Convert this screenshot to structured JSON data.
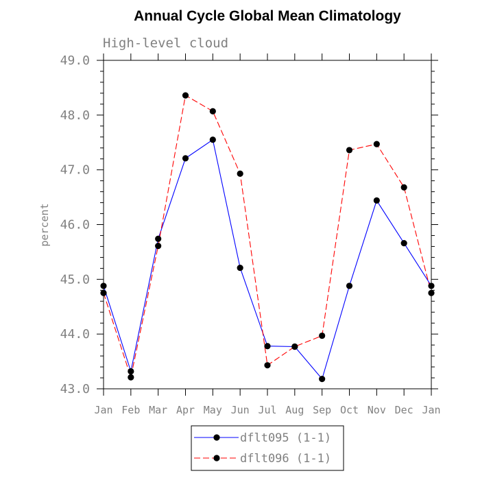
{
  "chart_data": {
    "type": "line",
    "title": "Annual Cycle Global Mean Climatology",
    "subtitle": "High-level cloud",
    "xlabel": "",
    "ylabel": "percent",
    "categories": [
      "Jan",
      "Feb",
      "Mar",
      "Apr",
      "May",
      "Jun",
      "Jul",
      "Aug",
      "Sep",
      "Oct",
      "Nov",
      "Dec",
      "Jan"
    ],
    "ylim": [
      43.0,
      49.0
    ],
    "yticks": [
      "43.0",
      "44.0",
      "45.0",
      "46.0",
      "47.0",
      "48.0",
      "49.0"
    ],
    "grid": false,
    "legend_position": "bottom-center",
    "series": [
      {
        "name": "dflt095 (1-1)",
        "color": "#0000ff",
        "dash": "solid",
        "marker": "filled-circle",
        "values": [
          44.88,
          43.32,
          45.74,
          47.21,
          47.55,
          45.21,
          43.78,
          43.77,
          43.18,
          44.88,
          46.44,
          45.66,
          44.88
        ]
      },
      {
        "name": "dflt096 (1-1)",
        "color": "#ff0000",
        "dash": "dashed",
        "marker": "filled-circle",
        "values": [
          44.75,
          43.21,
          45.61,
          48.36,
          48.07,
          46.93,
          43.43,
          43.77,
          43.97,
          47.36,
          47.47,
          46.68,
          44.75
        ]
      }
    ]
  }
}
